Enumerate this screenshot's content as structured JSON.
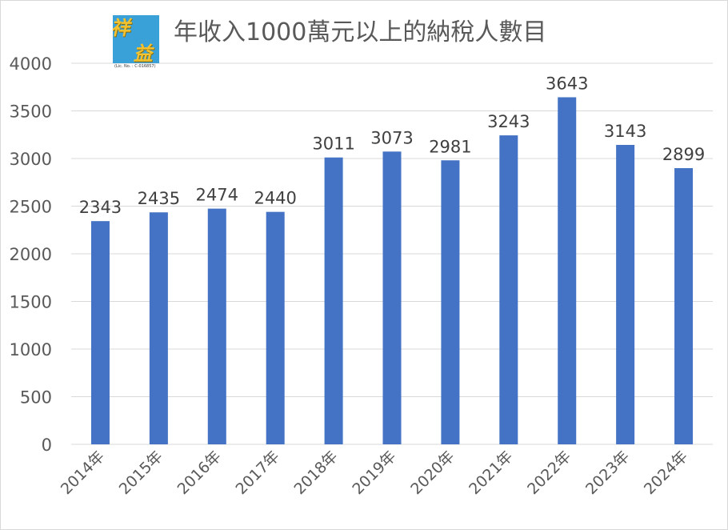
{
  "chart_data": {
    "type": "bar",
    "title": "年收入1000萬元以上的納稅人數目",
    "categories": [
      "2014年",
      "2015年",
      "2016年",
      "2017年",
      "2018年",
      "2019年",
      "2020年",
      "2021年",
      "2022年",
      "2023年",
      "2024年"
    ],
    "values": [
      2343,
      2435,
      2474,
      2440,
      3011,
      3073,
      2981,
      3243,
      3643,
      3143,
      2899
    ],
    "ylim": [
      0,
      4000
    ],
    "yticks": [
      0,
      500,
      1000,
      1500,
      2000,
      2500,
      3000,
      3500,
      4000
    ],
    "grid": true,
    "legend": "none",
    "bar_color": "#4472c4",
    "data_labels": true
  },
  "logo": {
    "chars": [
      "祥",
      "益"
    ],
    "license_text": "(Lic. No. : C-016857)"
  },
  "colors": {
    "bar": "#4472c4",
    "gridline": "#d9d9d9",
    "axis_text": "#595959",
    "label_text": "#404040",
    "logo_bg": "#3aa0d8",
    "logo_text": "#f2c230"
  }
}
